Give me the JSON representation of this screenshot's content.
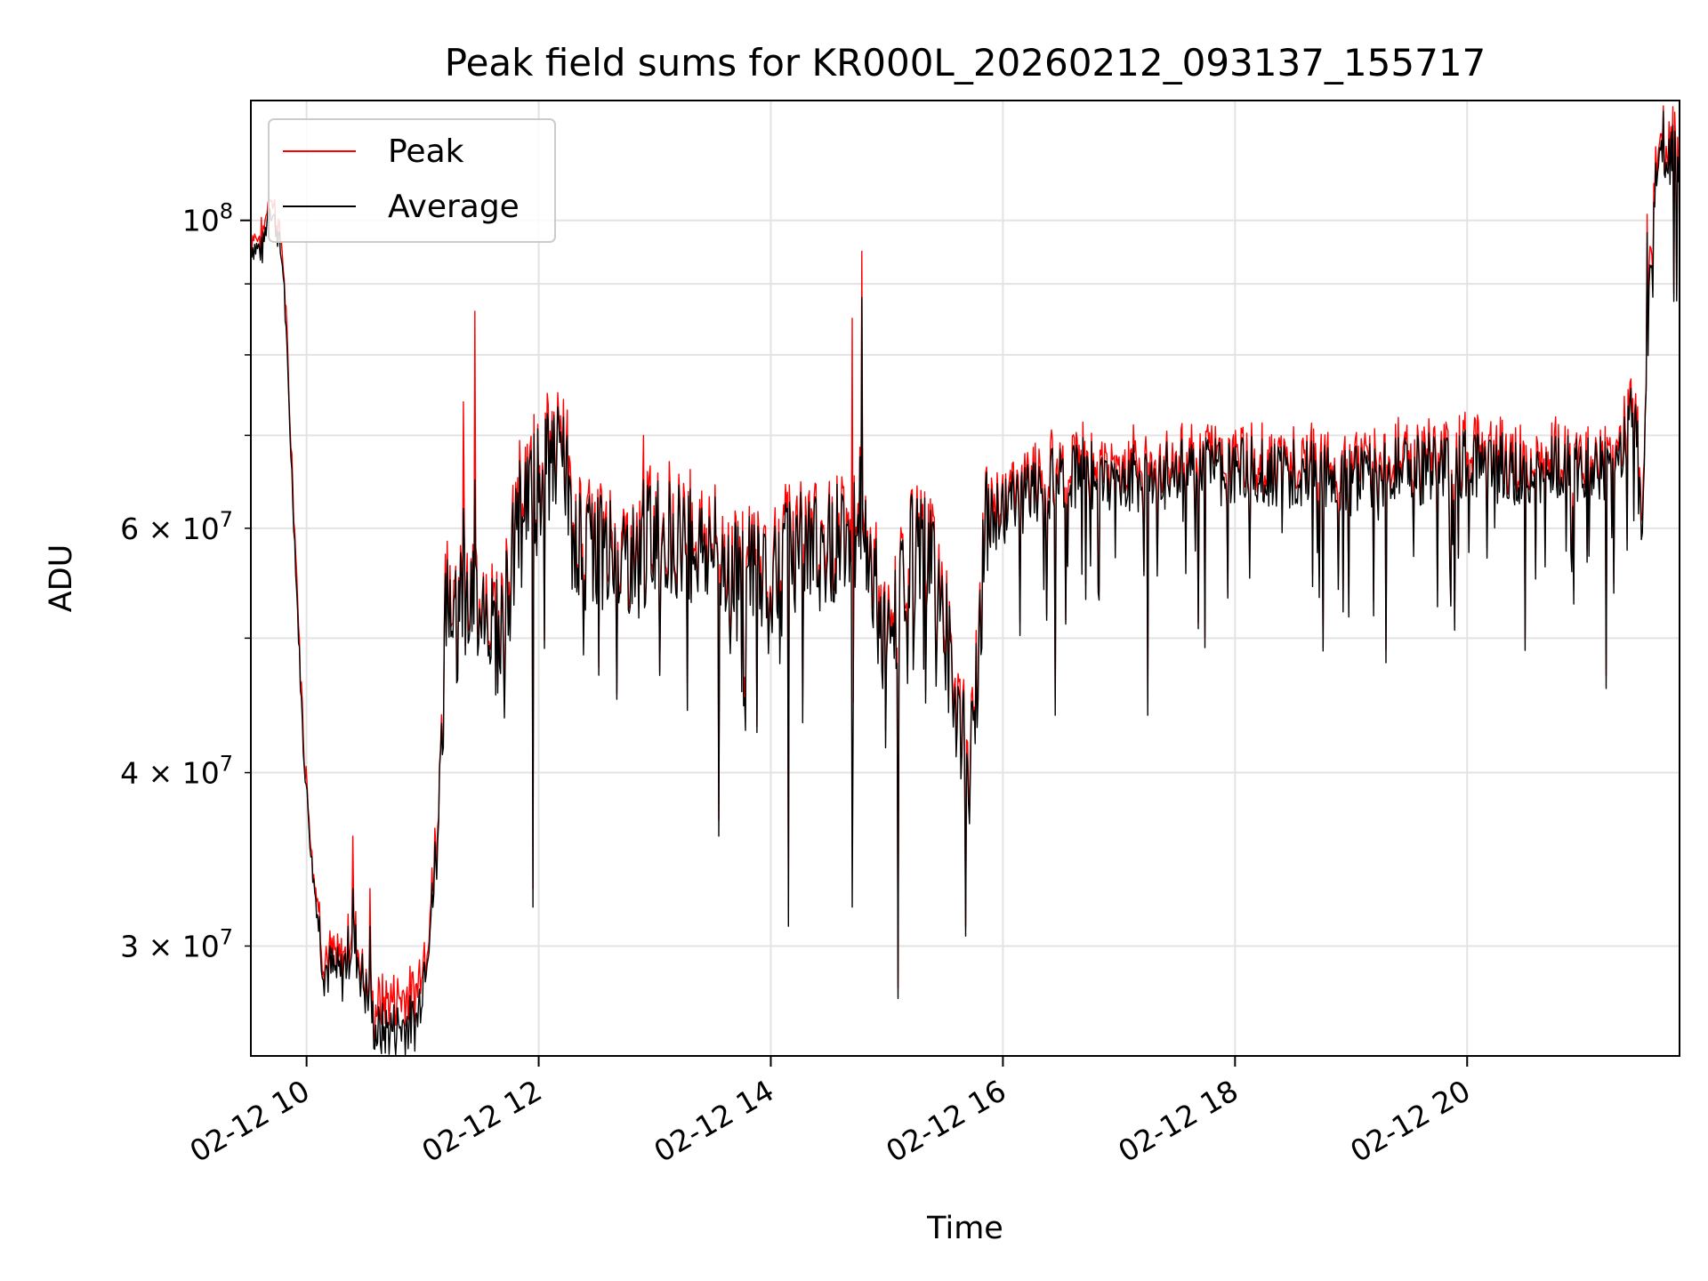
{
  "chart_data": {
    "type": "line",
    "title": "Peak field sums for KR000L_20260212_093137_155717",
    "xlabel": "Time",
    "ylabel": "ADU",
    "yscale": "log",
    "grid": true,
    "legend_position": "upper-left",
    "xlim": [
      9.52,
      21.83
    ],
    "ylim": [
      25000000,
      122000000
    ],
    "x_ticks": [
      10,
      12,
      14,
      16,
      18,
      20
    ],
    "x_tick_labels": [
      "02-12 10",
      "02-12 12",
      "02-12 14",
      "02-12 16",
      "02-12 18",
      "02-12 20"
    ],
    "y_major_ticks": [
      100000000
    ],
    "y_major_labels": [
      {
        "base": "10",
        "exp": "8"
      }
    ],
    "y_minor_ticks": [
      30000000,
      40000000,
      50000000,
      60000000,
      70000000,
      80000000,
      90000000
    ],
    "y_minor_labels": [
      {
        "value": 30000000,
        "mantissa": "3",
        "base": "10",
        "exp": "7"
      },
      {
        "value": 40000000,
        "mantissa": "4",
        "base": "10",
        "exp": "7"
      },
      {
        "value": 60000000,
        "mantissa": "6",
        "base": "10",
        "exp": "7"
      }
    ],
    "series": [
      {
        "name": "Peak",
        "color": "#ff0000"
      },
      {
        "name": "Average",
        "color": "#000000"
      }
    ],
    "average_anchors": [
      [
        9.52,
        96000000
      ],
      [
        9.62,
        95000000
      ],
      [
        9.68,
        103000000
      ],
      [
        9.75,
        98000000
      ],
      [
        9.8,
        92000000
      ],
      [
        9.9,
        58000000
      ],
      [
        9.97,
        42000000
      ],
      [
        10.05,
        34000000
      ],
      [
        10.15,
        29000000
      ],
      [
        10.3,
        28500000
      ],
      [
        10.4,
        30500000
      ],
      [
        10.5,
        28000000
      ],
      [
        10.6,
        26000000
      ],
      [
        10.75,
        26200000
      ],
      [
        10.95,
        26500000
      ],
      [
        11.1,
        33000000
      ],
      [
        11.2,
        52000000
      ],
      [
        11.3,
        58000000
      ],
      [
        11.4,
        52000000
      ],
      [
        11.5,
        54000000
      ],
      [
        11.65,
        50000000
      ],
      [
        11.75,
        55000000
      ],
      [
        11.85,
        63000000
      ],
      [
        12.0,
        65000000
      ],
      [
        12.2,
        68000000
      ],
      [
        12.3,
        58000000
      ],
      [
        12.55,
        58000000
      ],
      [
        12.85,
        57000000
      ],
      [
        13.0,
        60000000
      ],
      [
        13.3,
        59000000
      ],
      [
        13.6,
        57000000
      ],
      [
        13.9,
        56000000
      ],
      [
        14.2,
        58000000
      ],
      [
        14.5,
        58000000
      ],
      [
        14.8,
        63000000
      ],
      [
        15.0,
        48000000
      ],
      [
        15.2,
        58000000
      ],
      [
        15.4,
        57000000
      ],
      [
        15.6,
        45000000
      ],
      [
        15.72,
        40000000
      ],
      [
        15.85,
        60000000
      ],
      [
        16.0,
        62000000
      ],
      [
        16.3,
        64000000
      ],
      [
        16.6,
        66000000
      ],
      [
        17.0,
        65000000
      ],
      [
        17.5,
        66000000
      ],
      [
        18.0,
        66000000
      ],
      [
        18.5,
        66000000
      ],
      [
        19.0,
        65000000
      ],
      [
        19.5,
        66000000
      ],
      [
        20.0,
        67000000
      ],
      [
        20.5,
        66000000
      ],
      [
        21.0,
        66000000
      ],
      [
        21.3,
        67000000
      ],
      [
        21.45,
        75000000
      ],
      [
        21.5,
        58000000
      ],
      [
        21.58,
        95000000
      ],
      [
        21.65,
        115000000
      ],
      [
        21.72,
        112000000
      ],
      [
        21.83,
        112000000
      ]
    ],
    "events": [
      {
        "x": 10.4,
        "avg": 33000000,
        "peak": 36000000
      },
      {
        "x": 10.55,
        "avg": 31000000,
        "peak": 33000000
      },
      {
        "x": 11.35,
        "avg": 62000000,
        "peak": 74000000
      },
      {
        "x": 11.45,
        "avg": 65000000,
        "peak": 86000000
      },
      {
        "x": 11.95,
        "avg": 32000000,
        "peak": 33000000
      },
      {
        "x": 12.25,
        "avg": 70000000,
        "peak": 73000000
      },
      {
        "x": 12.9,
        "avg": 65000000,
        "peak": 70000000
      },
      {
        "x": 13.55,
        "avg": 36000000,
        "peak": 37000000
      },
      {
        "x": 14.15,
        "avg": 31000000,
        "peak": 32000000
      },
      {
        "x": 14.7,
        "avg": 32000000,
        "peak": 85000000
      },
      {
        "x": 14.78,
        "avg": 88000000,
        "peak": 95000000
      },
      {
        "x": 15.1,
        "avg": 27500000,
        "peak": 28000000
      },
      {
        "x": 15.68,
        "avg": 30500000,
        "peak": 31000000
      },
      {
        "x": 16.45,
        "avg": 44000000,
        "peak": 45000000
      },
      {
        "x": 17.25,
        "avg": 44000000,
        "peak": 45000000
      },
      {
        "x": 19.3,
        "avg": 48000000,
        "peak": 49000000
      },
      {
        "x": 20.5,
        "avg": 49000000,
        "peak": 50000000
      },
      {
        "x": 21.2,
        "avg": 46000000,
        "peak": 47000000
      },
      {
        "x": 21.55,
        "avg": 98000000,
        "peak": 101000000
      }
    ]
  }
}
